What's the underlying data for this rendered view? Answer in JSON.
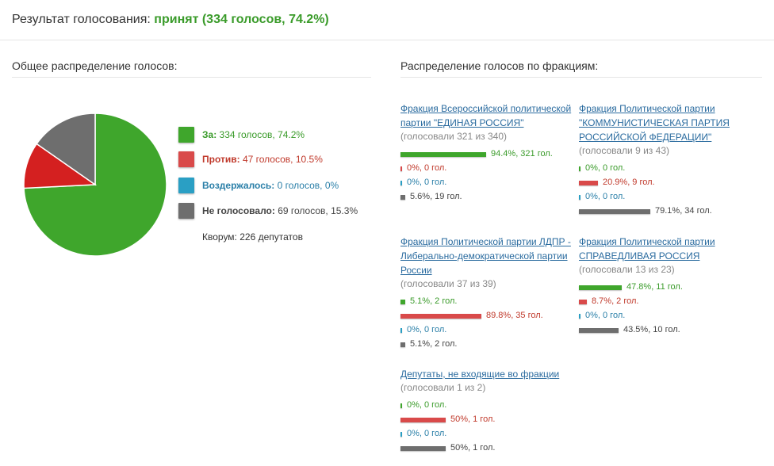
{
  "header": {
    "label": "Результат голосования:",
    "result": "принят (334 голосов, 74.2%)"
  },
  "overall": {
    "title": "Общее распределение голосов:",
    "colors": {
      "for": "#3fa62c",
      "against": "#d42020",
      "abstained": "#2a9fc4",
      "not_voted": "#6e6e6e"
    },
    "legend": [
      {
        "key": "for",
        "label": "За:",
        "value": "334 голосов, 74.2%",
        "percent": 74.2
      },
      {
        "key": "against",
        "label": "Против:",
        "value": "47 голосов, 10.5%",
        "percent": 10.5
      },
      {
        "key": "abstained",
        "label": "Воздержалось:",
        "value": "0 голосов, 0%",
        "percent": 0
      },
      {
        "key": "not_voted",
        "label": "Не голосовало:",
        "value": "69 голосов, 15.3%",
        "percent": 15.3
      }
    ],
    "quorum": "Кворум: 226 депутатов"
  },
  "factions_title": "Распределение голосов по фракциям:",
  "factions": [
    {
      "name": "Фракция Всероссийской политической партии \"ЕДИНАЯ РОССИЯ\"",
      "voted": "(голосовали 321 из 340)",
      "rows": [
        {
          "key": "for",
          "pct": 94.4,
          "text": "94.4%, 321 гол."
        },
        {
          "key": "against",
          "pct": 0,
          "text": "0%, 0 гол."
        },
        {
          "key": "abst",
          "pct": 0,
          "text": "0%, 0 гол."
        },
        {
          "key": "none",
          "pct": 5.6,
          "text": "5.6%, 19 гол."
        }
      ]
    },
    {
      "name": "Фракция Политической партии \"КОММУНИСТИЧЕСКАЯ ПАРТИЯ РОССИЙСКОЙ ФЕДЕРАЦИИ\"",
      "voted": "(голосовали 9 из 43)",
      "rows": [
        {
          "key": "for",
          "pct": 0,
          "text": "0%, 0 гол."
        },
        {
          "key": "against",
          "pct": 20.9,
          "text": "20.9%, 9 гол."
        },
        {
          "key": "abst",
          "pct": 0,
          "text": "0%, 0 гол."
        },
        {
          "key": "none",
          "pct": 79.1,
          "text": "79.1%, 34 гол."
        }
      ]
    },
    {
      "name": "Фракция Политической партии ЛДПР - Либерально-демократической партии России",
      "voted": "(голосовали 37 из 39)",
      "rows": [
        {
          "key": "for",
          "pct": 5.1,
          "text": "5.1%, 2 гол."
        },
        {
          "key": "against",
          "pct": 89.8,
          "text": "89.8%, 35 гол."
        },
        {
          "key": "abst",
          "pct": 0,
          "text": "0%, 0 гол."
        },
        {
          "key": "none",
          "pct": 5.1,
          "text": "5.1%, 2 гол."
        }
      ]
    },
    {
      "name": "Фракция Политической партии СПРАВЕДЛИВАЯ РОССИЯ",
      "voted": "(голосовали 13 из 23)",
      "rows": [
        {
          "key": "for",
          "pct": 47.8,
          "text": "47.8%, 11 гол."
        },
        {
          "key": "against",
          "pct": 8.7,
          "text": "8.7%, 2 гол."
        },
        {
          "key": "abst",
          "pct": 0,
          "text": "0%, 0 гол."
        },
        {
          "key": "none",
          "pct": 43.5,
          "text": "43.5%, 10 гол."
        }
      ]
    },
    {
      "name": "Депутаты, не входящие во фракции",
      "voted": "(голосовали 1 из 2)",
      "rows": [
        {
          "key": "for",
          "pct": 0,
          "text": "0%, 0 гол."
        },
        {
          "key": "against",
          "pct": 50,
          "text": "50%, 1 гол."
        },
        {
          "key": "abst",
          "pct": 0,
          "text": "0%, 0 гол."
        },
        {
          "key": "none",
          "pct": 50,
          "text": "50%, 1 гол."
        }
      ]
    }
  ]
}
